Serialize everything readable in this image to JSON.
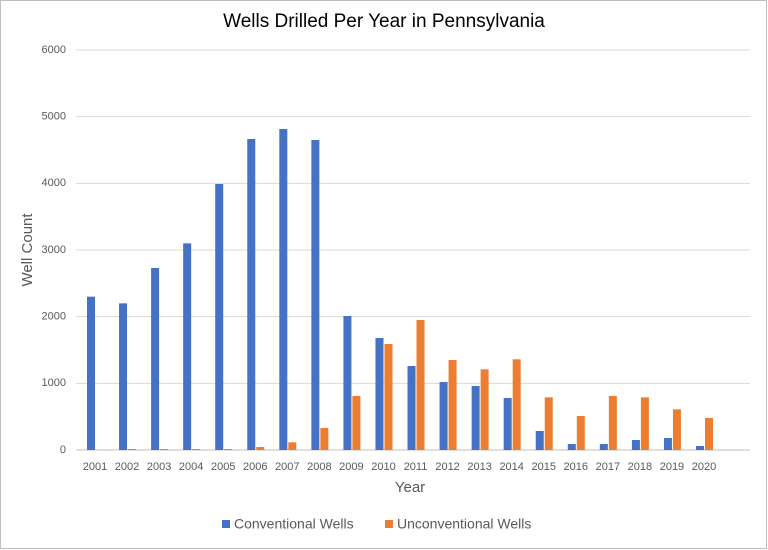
{
  "chart_data": {
    "type": "bar",
    "title": "Wells Drilled Per Year in Pennsylvania",
    "x_label": "Year",
    "y_label": "Well Count",
    "categories": [
      "2001",
      "2002",
      "2003",
      "2004",
      "2005",
      "2006",
      "2007",
      "2008",
      "2009",
      "2010",
      "2011",
      "2012",
      "2013",
      "2014",
      "2015",
      "2016",
      "2017",
      "2018",
      "2019",
      "2020"
    ],
    "series": [
      {
        "name": "Conventional Wells",
        "color": "#4472c4",
        "values": [
          2300,
          2200,
          2730,
          3100,
          3990,
          4665,
          4815,
          4650,
          2010,
          1680,
          1260,
          1020,
          960,
          780,
          285,
          90,
          90,
          150,
          180,
          60
        ]
      },
      {
        "name": "Unconventional Wells",
        "color": "#ed7d31",
        "values": [
          0,
          15,
          15,
          15,
          15,
          45,
          115,
          330,
          810,
          1590,
          1950,
          1350,
          1210,
          1360,
          790,
          510,
          810,
          790,
          610,
          480
        ]
      }
    ],
    "ylim": [
      0,
      6000
    ],
    "yticks": [
      0,
      1000,
      2000,
      3000,
      4000,
      5000,
      6000
    ],
    "grid": true,
    "legend": "bottom"
  }
}
